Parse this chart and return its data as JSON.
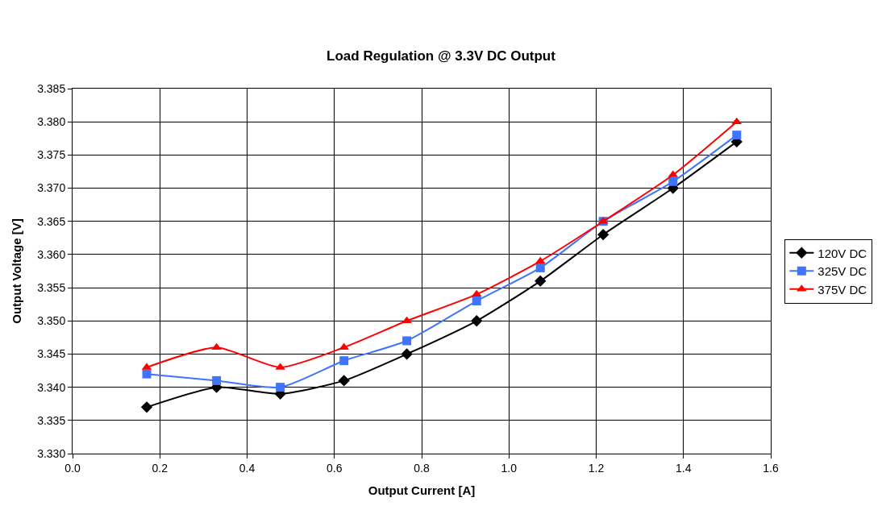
{
  "chart_data": {
    "type": "line",
    "title": "Load Regulation @ 3.3V DC Output",
    "xlabel": "Output Current [A]",
    "ylabel": "Output Voltage [V]",
    "x": [
      0.17,
      0.33,
      0.476,
      0.622,
      0.766,
      0.926,
      1.072,
      1.216,
      1.376,
      1.522
    ],
    "series": [
      {
        "name": "120V DC",
        "color": "#000000",
        "marker": "diamond",
        "values": [
          3.337,
          3.34,
          3.339,
          3.341,
          3.345,
          3.35,
          3.356,
          3.363,
          3.37,
          3.377
        ]
      },
      {
        "name": "325V DC",
        "color": "#3f74ff",
        "marker": "square",
        "values": [
          3.342,
          3.341,
          3.34,
          3.344,
          3.347,
          3.353,
          3.358,
          3.365,
          3.371,
          3.378
        ]
      },
      {
        "name": "375V DC",
        "color": "#ff0000",
        "marker": "triangle",
        "values": [
          3.343,
          3.346,
          3.343,
          3.346,
          3.35,
          3.354,
          3.359,
          3.365,
          3.372,
          3.38
        ]
      }
    ],
    "xlim": [
      0,
      1.6
    ],
    "xticks": [
      {
        "value": 0,
        "label": "0.0"
      },
      {
        "value": 0.2,
        "label": "0.2"
      },
      {
        "value": 0.4,
        "label": "0.4"
      },
      {
        "value": 0.6,
        "label": "0.6"
      },
      {
        "value": 0.8,
        "label": "0.8"
      },
      {
        "value": 1.0,
        "label": "1.0"
      },
      {
        "value": 1.2,
        "label": "1.2"
      },
      {
        "value": 1.4,
        "label": "1.4"
      },
      {
        "value": 1.6,
        "label": "1.6"
      }
    ],
    "ylim": [
      3.33,
      3.385
    ],
    "yticks": [
      {
        "value": 3.33,
        "label": "3.330"
      },
      {
        "value": 3.335,
        "label": "3.335"
      },
      {
        "value": 3.34,
        "label": "3.340"
      },
      {
        "value": 3.345,
        "label": "3.345"
      },
      {
        "value": 3.35,
        "label": "3.350"
      },
      {
        "value": 3.355,
        "label": "3.355"
      },
      {
        "value": 3.36,
        "label": "3.360"
      },
      {
        "value": 3.365,
        "label": "3.365"
      },
      {
        "value": 3.37,
        "label": "3.370"
      },
      {
        "value": 3.375,
        "label": "3.375"
      },
      {
        "value": 3.38,
        "label": "3.380"
      },
      {
        "value": 3.385,
        "label": "3.385"
      }
    ],
    "grid": true,
    "legend": "right",
    "line_style": "solid"
  }
}
